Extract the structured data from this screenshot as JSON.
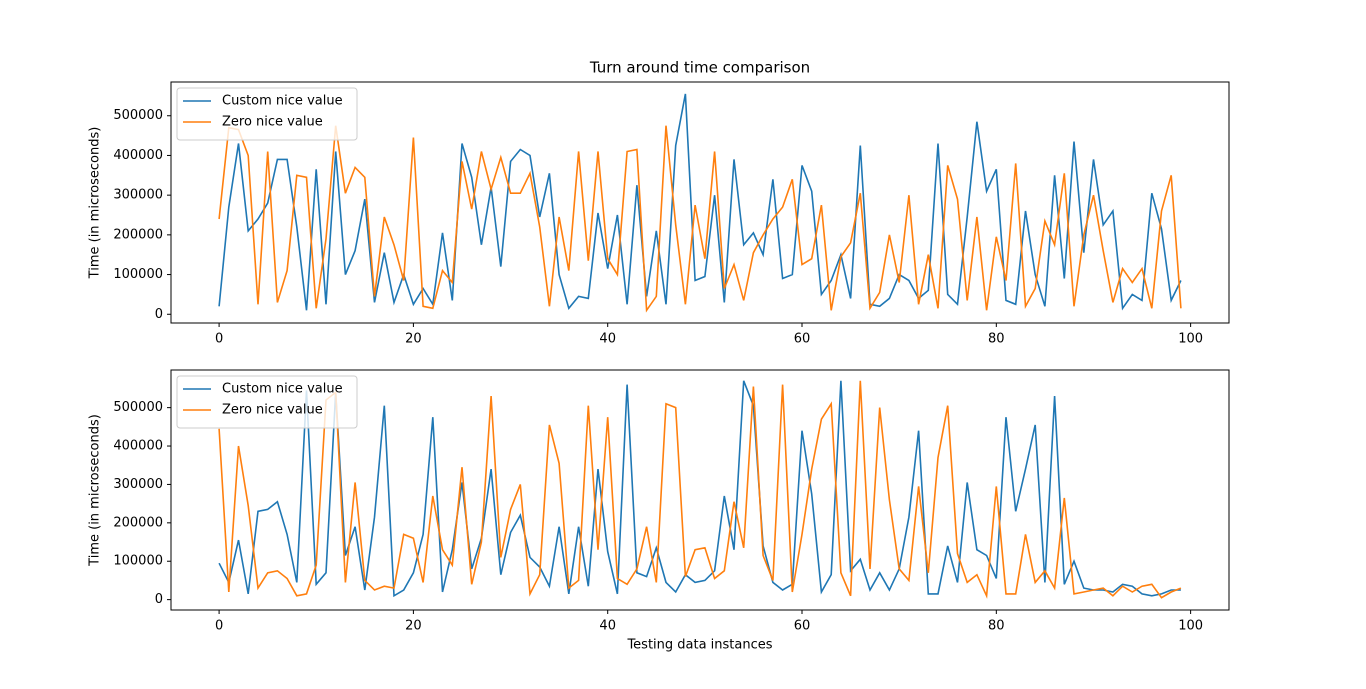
{
  "chart_data": [
    {
      "type": "line",
      "title": "Turn around time comparison",
      "ylabel": "Time (in microseconds)",
      "x": [
        0,
        1,
        2,
        3,
        4,
        5,
        6,
        7,
        8,
        9,
        10,
        11,
        12,
        13,
        14,
        15,
        16,
        17,
        18,
        19,
        20,
        21,
        22,
        23,
        24,
        25,
        26,
        27,
        28,
        29,
        30,
        31,
        32,
        33,
        34,
        35,
        36,
        37,
        38,
        39,
        40,
        41,
        42,
        43,
        44,
        45,
        46,
        47,
        48,
        49,
        50,
        51,
        52,
        53,
        54,
        55,
        56,
        57,
        58,
        59,
        60,
        61,
        62,
        63,
        64,
        65,
        66,
        67,
        68,
        69,
        70,
        71,
        72,
        73,
        74,
        75,
        76,
        77,
        78,
        79,
        80,
        81,
        82,
        83,
        84,
        85,
        86,
        87,
        88,
        89,
        90,
        91,
        92,
        93,
        94,
        95,
        96,
        97,
        98,
        99
      ],
      "series": [
        {
          "name": "Custom nice value",
          "color": "#1f77b4",
          "values": [
            20000,
            270000,
            430000,
            210000,
            240000,
            280000,
            390000,
            390000,
            220000,
            10000,
            365000,
            25000,
            410000,
            100000,
            160000,
            290000,
            30000,
            155000,
            30000,
            100000,
            25000,
            65000,
            25000,
            205000,
            35000,
            430000,
            345000,
            175000,
            320000,
            120000,
            385000,
            415000,
            400000,
            245000,
            355000,
            100000,
            15000,
            45000,
            40000,
            255000,
            115000,
            250000,
            25000,
            325000,
            45000,
            210000,
            25000,
            425000,
            555000,
            85000,
            95000,
            300000,
            30000,
            390000,
            175000,
            205000,
            150000,
            340000,
            90000,
            100000,
            375000,
            310000,
            50000,
            85000,
            150000,
            40000,
            425000,
            25000,
            20000,
            40000,
            100000,
            85000,
            40000,
            60000,
            430000,
            50000,
            25000,
            245000,
            485000,
            310000,
            365000,
            35000,
            25000,
            260000,
            100000,
            20000,
            350000,
            90000,
            435000,
            155000,
            390000,
            225000,
            260000,
            15000,
            50000,
            35000,
            305000,
            215000,
            35000,
            85000
          ]
        },
        {
          "name": "Zero nice value",
          "color": "#ff7f0e",
          "values": [
            240000,
            470000,
            465000,
            400000,
            25000,
            410000,
            30000,
            110000,
            350000,
            345000,
            15000,
            190000,
            475000,
            305000,
            370000,
            345000,
            45000,
            245000,
            175000,
            85000,
            445000,
            20000,
            15000,
            110000,
            80000,
            385000,
            265000,
            410000,
            315000,
            395000,
            305000,
            305000,
            355000,
            220000,
            20000,
            245000,
            110000,
            410000,
            135000,
            410000,
            140000,
            100000,
            410000,
            415000,
            10000,
            45000,
            475000,
            225000,
            25000,
            275000,
            140000,
            410000,
            65000,
            125000,
            35000,
            155000,
            200000,
            240000,
            270000,
            340000,
            125000,
            140000,
            275000,
            10000,
            145000,
            180000,
            305000,
            15000,
            55000,
            200000,
            80000,
            300000,
            25000,
            150000,
            15000,
            375000,
            290000,
            35000,
            245000,
            10000,
            195000,
            85000,
            380000,
            20000,
            65000,
            235000,
            175000,
            355000,
            20000,
            200000,
            300000,
            160000,
            30000,
            115000,
            80000,
            115000,
            15000,
            260000,
            350000,
            15000
          ]
        }
      ],
      "xlim": [
        -4.95,
        103.95
      ],
      "ylim": [
        -22000,
        585000
      ],
      "xticks": [
        0,
        20,
        40,
        60,
        80,
        100
      ],
      "yticks": [
        0,
        100000,
        200000,
        300000,
        400000,
        500000
      ],
      "legend": "upper left"
    },
    {
      "type": "line",
      "xlabel": "Testing data instances",
      "ylabel": "Time (in microseconds)",
      "x": [
        0,
        1,
        2,
        3,
        4,
        5,
        6,
        7,
        8,
        9,
        10,
        11,
        12,
        13,
        14,
        15,
        16,
        17,
        18,
        19,
        20,
        21,
        22,
        23,
        24,
        25,
        26,
        27,
        28,
        29,
        30,
        31,
        32,
        33,
        34,
        35,
        36,
        37,
        38,
        39,
        40,
        41,
        42,
        43,
        44,
        45,
        46,
        47,
        48,
        49,
        50,
        51,
        52,
        53,
        54,
        55,
        56,
        57,
        58,
        59,
        60,
        61,
        62,
        63,
        64,
        65,
        66,
        67,
        68,
        69,
        70,
        71,
        72,
        73,
        74,
        75,
        76,
        77,
        78,
        79,
        80,
        81,
        82,
        83,
        84,
        85,
        86,
        87,
        88,
        89,
        90,
        91,
        92,
        93,
        94,
        95,
        96,
        97,
        98,
        99
      ],
      "series": [
        {
          "name": "Custom nice value",
          "color": "#1f77b4",
          "values": [
            95000,
            45000,
            155000,
            15000,
            230000,
            235000,
            255000,
            170000,
            45000,
            545000,
            40000,
            70000,
            540000,
            115000,
            190000,
            25000,
            215000,
            505000,
            10000,
            25000,
            70000,
            170000,
            475000,
            20000,
            130000,
            305000,
            80000,
            160000,
            340000,
            65000,
            175000,
            220000,
            110000,
            85000,
            35000,
            190000,
            15000,
            190000,
            35000,
            340000,
            125000,
            15000,
            560000,
            70000,
            60000,
            135000,
            45000,
            20000,
            65000,
            45000,
            50000,
            75000,
            270000,
            130000,
            570000,
            505000,
            140000,
            45000,
            25000,
            40000,
            440000,
            275000,
            20000,
            65000,
            570000,
            75000,
            105000,
            25000,
            70000,
            25000,
            80000,
            215000,
            440000,
            15000,
            15000,
            140000,
            45000,
            305000,
            130000,
            115000,
            55000,
            475000,
            230000,
            340000,
            455000,
            45000,
            530000,
            40000,
            100000,
            30000,
            25000,
            25000,
            20000,
            40000,
            35000,
            15000,
            10000,
            15000,
            25000,
            25000
          ]
        },
        {
          "name": "Zero nice value",
          "color": "#ff7f0e",
          "values": [
            445000,
            20000,
            400000,
            245000,
            30000,
            70000,
            75000,
            55000,
            10000,
            15000,
            90000,
            520000,
            540000,
            45000,
            305000,
            50000,
            25000,
            35000,
            30000,
            170000,
            160000,
            45000,
            270000,
            130000,
            90000,
            345000,
            40000,
            150000,
            530000,
            110000,
            235000,
            300000,
            15000,
            65000,
            455000,
            355000,
            30000,
            50000,
            505000,
            130000,
            475000,
            55000,
            40000,
            80000,
            190000,
            45000,
            510000,
            500000,
            60000,
            130000,
            135000,
            55000,
            75000,
            255000,
            135000,
            555000,
            115000,
            50000,
            560000,
            20000,
            170000,
            340000,
            470000,
            510000,
            70000,
            10000,
            570000,
            80000,
            500000,
            260000,
            80000,
            50000,
            295000,
            70000,
            370000,
            505000,
            120000,
            45000,
            65000,
            10000,
            295000,
            15000,
            15000,
            170000,
            45000,
            75000,
            30000,
            265000,
            15000,
            20000,
            25000,
            30000,
            10000,
            35000,
            20000,
            35000,
            40000,
            5000,
            20000,
            30000
          ]
        }
      ],
      "xlim": [
        -4.95,
        103.95
      ],
      "ylim": [
        -27000,
        598000
      ],
      "xticks": [
        0,
        20,
        40,
        60,
        80,
        100
      ],
      "yticks": [
        0,
        100000,
        200000,
        300000,
        400000,
        500000
      ],
      "legend": "upper left"
    }
  ]
}
